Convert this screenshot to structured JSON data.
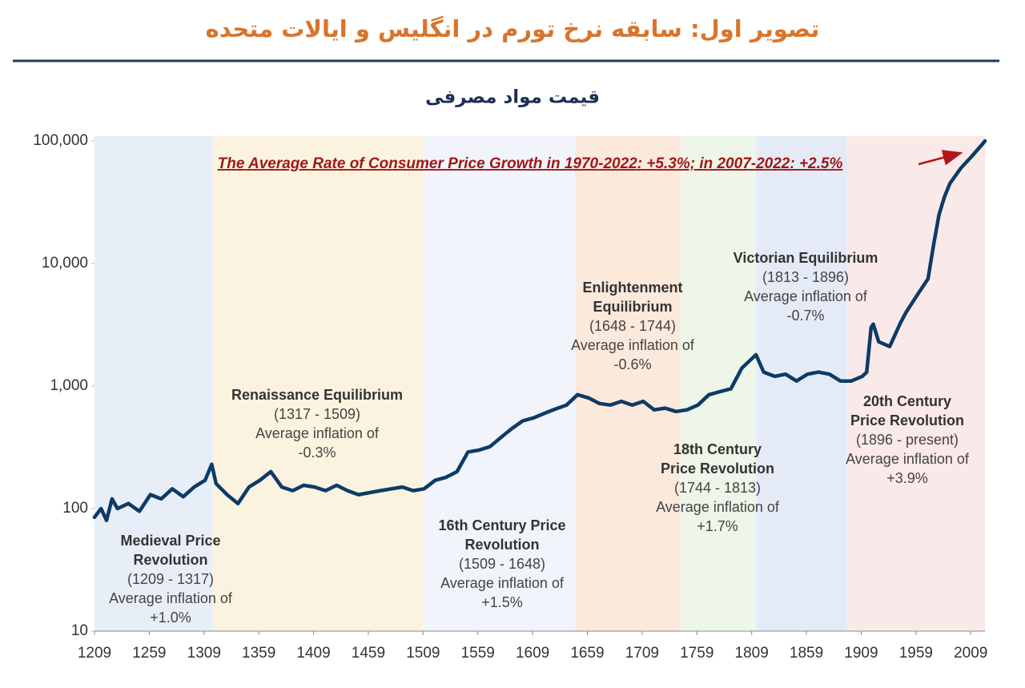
{
  "chart_data": {
    "type": "line",
    "title": "تصویر اول: سابقه نرخ تورم در انگلیس و ایالات متحده",
    "subtitle": "قیمت مواد مصرفی",
    "annotation": "The Average Rate of Consumer Price Growth in 1970-2022: +5.3%; in 2007-2022: +2.5%",
    "log_y": true,
    "grid": false,
    "xlim": [
      1209,
      2022
    ],
    "ylim": [
      10,
      100000
    ],
    "xticks": [
      1209,
      1259,
      1309,
      1359,
      1409,
      1459,
      1509,
      1559,
      1609,
      1659,
      1709,
      1759,
      1809,
      1859,
      1909,
      1959,
      2009
    ],
    "yticks": [
      10,
      100,
      {
        "value": 1000,
        "label": "1,000"
      },
      {
        "value": 10000,
        "label": "10,000"
      },
      {
        "value": 100000,
        "label": "100,000"
      }
    ],
    "x": [
      1209,
      1215,
      1220,
      1225,
      1230,
      1240,
      1250,
      1260,
      1270,
      1280,
      1290,
      1300,
      1310,
      1316,
      1320,
      1330,
      1340,
      1350,
      1360,
      1370,
      1380,
      1390,
      1400,
      1410,
      1420,
      1430,
      1440,
      1450,
      1460,
      1470,
      1480,
      1490,
      1500,
      1510,
      1520,
      1530,
      1540,
      1550,
      1560,
      1570,
      1580,
      1590,
      1600,
      1610,
      1620,
      1630,
      1640,
      1650,
      1660,
      1670,
      1680,
      1690,
      1700,
      1710,
      1720,
      1730,
      1740,
      1750,
      1760,
      1770,
      1780,
      1790,
      1800,
      1810,
      1813,
      1820,
      1830,
      1840,
      1850,
      1860,
      1870,
      1880,
      1890,
      1900,
      1910,
      1914,
      1918,
      1920,
      1925,
      1935,
      1945,
      1950,
      1960,
      1970,
      1975,
      1980,
      1985,
      1990,
      2000,
      2010,
      2020,
      2022
    ],
    "series": [
      {
        "name": "Consumer prices",
        "color": "#0d3b66",
        "values": [
          85,
          100,
          80,
          120,
          100,
          110,
          95,
          130,
          120,
          145,
          125,
          150,
          170,
          230,
          160,
          130,
          110,
          150,
          170,
          200,
          150,
          140,
          155,
          150,
          140,
          155,
          140,
          130,
          135,
          140,
          145,
          150,
          140,
          145,
          170,
          180,
          200,
          290,
          300,
          320,
          380,
          450,
          520,
          550,
          600,
          650,
          700,
          850,
          800,
          720,
          700,
          750,
          700,
          750,
          640,
          660,
          620,
          640,
          700,
          850,
          900,
          950,
          1400,
          1700,
          1800,
          1300,
          1200,
          1250,
          1100,
          1250,
          1300,
          1250,
          1100,
          1100,
          1200,
          1300,
          3000,
          3200,
          2300,
          2100,
          3300,
          4000,
          5500,
          7500,
          14000,
          25000,
          35000,
          45000,
          60000,
          75000,
          95000,
          100000
        ]
      }
    ],
    "eras": [
      {
        "start": 1209,
        "end": 1317,
        "color": "#e8eef8",
        "name": [
          "Medieval Price",
          "Revolution"
        ],
        "period": "(1209 - 1317)",
        "inflation": [
          "Average inflation of",
          "+1.0%"
        ]
      },
      {
        "start": 1317,
        "end": 1509,
        "color": "#fbf3e0",
        "name": [
          "Renaissance Equilibrium"
        ],
        "period": "(1317 - 1509)",
        "inflation": [
          "Average inflation of",
          "-0.3%"
        ]
      },
      {
        "start": 1509,
        "end": 1648,
        "color": "#f2f4fb",
        "name": [
          "16th Century Price",
          "Revolution"
        ],
        "period": "(1509 - 1648)",
        "inflation": [
          "Average inflation of",
          "+1.5%"
        ]
      },
      {
        "start": 1648,
        "end": 1744,
        "color": "#fbe9dc",
        "name": [
          "Enlightenment",
          "Equilibrium"
        ],
        "period": "(1648 - 1744)",
        "inflation": [
          "Average inflation of",
          "-0.6%"
        ]
      },
      {
        "start": 1744,
        "end": 1813,
        "color": "#eef5e9",
        "name": [
          "18th Century",
          "Price Revolution"
        ],
        "period": "(1744 - 1813)",
        "inflation": [
          "Average inflation of",
          "+1.7%"
        ]
      },
      {
        "start": 1813,
        "end": 1896,
        "color": "#e4ebf7",
        "name": [
          "Victorian Equilibrium"
        ],
        "period": "(1813 - 1896)",
        "inflation": [
          "Average inflation of",
          "-0.7%"
        ]
      },
      {
        "start": 1896,
        "end": 2022,
        "color": "#fae9e9",
        "name": [
          "20th Century",
          "Price Revolution"
        ],
        "period": "(1896 - present)",
        "inflation": [
          "Average inflation of",
          "+3.9%"
        ]
      }
    ]
  }
}
